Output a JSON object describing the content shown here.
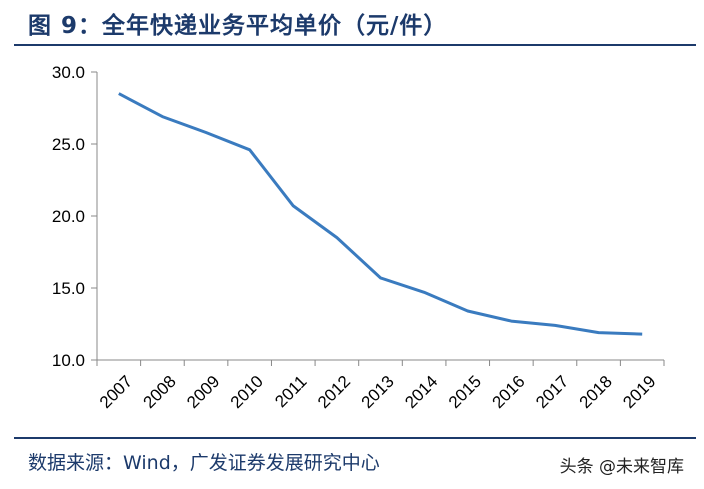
{
  "title": "图 9：全年快递业务平均单价（元/件）",
  "source": "数据来源：Wind，广发证券发展研究中心",
  "watermark": "头条 @未来智库",
  "colors": {
    "line": "#3a7bbf",
    "accent": "#1c3a6b",
    "axis": "#888888"
  },
  "chart_data": {
    "type": "line",
    "title": "全年快递业务平均单价（元/件）",
    "xlabel": "",
    "ylabel": "",
    "categories": [
      "2007",
      "2008",
      "2009",
      "2010",
      "2011",
      "2012",
      "2013",
      "2014",
      "2015",
      "2016",
      "2017",
      "2018",
      "2019"
    ],
    "series": [
      {
        "values": [
          28.5,
          26.9,
          25.8,
          24.6,
          20.7,
          18.5,
          15.7,
          14.7,
          13.4,
          12.7,
          12.4,
          11.9,
          11.8
        ]
      }
    ],
    "ylim": [
      10,
      30
    ],
    "yticks": [
      "10.0",
      "15.0",
      "20.0",
      "25.0",
      "30.0"
    ],
    "grid": false,
    "legend": "none"
  }
}
